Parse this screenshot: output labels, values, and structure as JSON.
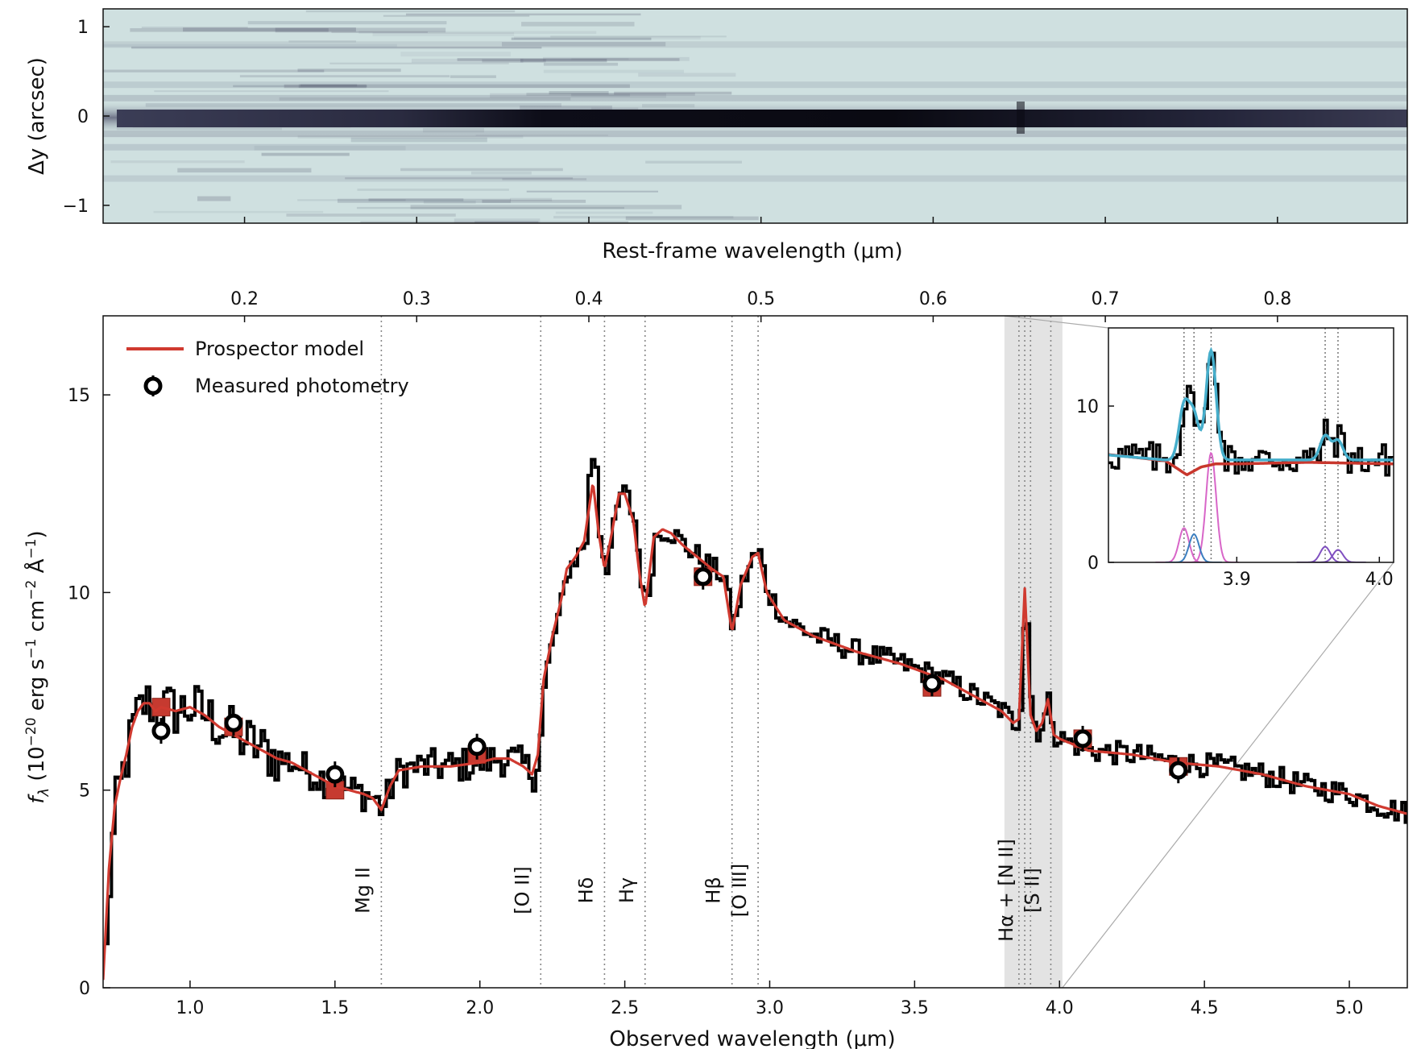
{
  "figure": {
    "spec2d_ylabel": "Δy (arcsec)",
    "rest_xlabel": "Rest-frame wavelength (μm)",
    "main_xlabel": "Observed wavelength (μm)",
    "main_ylabel": "f_λ (10^−20 erg s^−1 cm^−2 Å^−1)",
    "legend": {
      "model": "Prospector model",
      "photometry": "Measured photometry"
    }
  },
  "chart_data": [
    {
      "type": "heatmap",
      "name": "2D spectrum",
      "ylabel": "Δy (arcsec)",
      "ylim": [
        -1.2,
        1.2
      ],
      "yticks": [
        1,
        0,
        -1
      ],
      "xlim_observed": [
        0.7,
        5.2
      ],
      "trace_row": 0,
      "colors": {
        "background": "#cfe0e0",
        "trace": "#0a0a14",
        "mid": "#5a5c75"
      }
    },
    {
      "type": "line",
      "name": "main spectrum",
      "xlabel": "Observed wavelength (μm)",
      "ylabel": "f_λ (10^−20 erg s^−1 cm^−2 Å^−1)",
      "xlim": [
        0.7,
        5.2
      ],
      "ylim": [
        0,
        17
      ],
      "xticks": [
        "1.0",
        "1.5",
        "2.0",
        "2.5",
        "3.0",
        "3.5",
        "4.0",
        "4.5",
        "5.0"
      ],
      "yticks": [
        "0",
        "5",
        "10",
        "15"
      ],
      "top_axis": {
        "label": "Rest-frame wavelength (μm)",
        "ticks": [
          "0.2",
          "0.3",
          "0.4",
          "0.5",
          "0.6",
          "0.7",
          "0.8"
        ],
        "tick_values_rest": [
          0.2,
          0.3,
          0.4,
          0.5,
          0.6,
          0.7,
          0.8
        ],
        "conversion_factor": 5.94
      },
      "colors": {
        "observed": "#000000",
        "model": "#d03a30",
        "photometry_face": "#ffffff",
        "band": "#e3e3e3",
        "lines": "#777777"
      },
      "series": [
        {
          "name": "Prospector model",
          "x": [
            0.7,
            0.72,
            0.74,
            0.76,
            0.78,
            0.8,
            0.82,
            0.84,
            0.86,
            0.88,
            0.9,
            0.95,
            1.0,
            1.05,
            1.1,
            1.15,
            1.2,
            1.25,
            1.3,
            1.35,
            1.4,
            1.45,
            1.5,
            1.55,
            1.6,
            1.63,
            1.66,
            1.69,
            1.72,
            1.8,
            1.9,
            2.0,
            2.05,
            2.1,
            2.15,
            2.18,
            2.2,
            2.22,
            2.25,
            2.28,
            2.3,
            2.33,
            2.36,
            2.39,
            2.41,
            2.43,
            2.45,
            2.48,
            2.5,
            2.53,
            2.55,
            2.57,
            2.6,
            2.63,
            2.66,
            2.7,
            2.75,
            2.8,
            2.84,
            2.87,
            2.9,
            2.94,
            2.96,
            2.99,
            3.05,
            3.15,
            3.3,
            3.45,
            3.6,
            3.7,
            3.8,
            3.84,
            3.86,
            3.88,
            3.9,
            3.92,
            3.94,
            3.96,
            3.98,
            4.0,
            4.1,
            4.25,
            4.4,
            4.55,
            4.7,
            4.85,
            5.0,
            5.1,
            5.2
          ],
          "y": [
            0.2,
            3.0,
            4.6,
            5.3,
            5.9,
            6.6,
            7.0,
            7.2,
            7.2,
            7.0,
            7.1,
            7.0,
            7.1,
            6.9,
            6.6,
            6.4,
            6.2,
            6.0,
            5.8,
            5.7,
            5.5,
            5.3,
            5.1,
            5.0,
            4.9,
            4.8,
            4.5,
            5.1,
            5.5,
            5.6,
            5.6,
            5.7,
            5.8,
            5.8,
            5.6,
            5.4,
            5.9,
            7.8,
            8.9,
            9.8,
            10.6,
            10.9,
            11.3,
            12.8,
            11.5,
            10.6,
            11.3,
            12.5,
            12.5,
            11.8,
            10.5,
            9.6,
            11.4,
            11.6,
            11.5,
            11.2,
            10.9,
            10.6,
            10.4,
            9.0,
            10.2,
            10.9,
            11.0,
            10.0,
            9.3,
            8.9,
            8.5,
            8.2,
            7.8,
            7.4,
            7.0,
            6.7,
            6.8,
            10.1,
            6.9,
            6.5,
            6.7,
            7.3,
            6.4,
            6.3,
            6.0,
            5.9,
            5.7,
            5.6,
            5.4,
            5.1,
            4.9,
            4.6,
            4.4
          ]
        },
        {
          "name": "Measured photometry",
          "x": [
            0.9,
            1.15,
            1.5,
            1.99,
            2.77,
            3.56,
            4.08,
            4.41
          ],
          "y": [
            6.5,
            6.7,
            5.4,
            6.1,
            10.4,
            7.7,
            6.3,
            5.5
          ]
        }
      ],
      "model_photometry": {
        "x": [
          0.9,
          1.15,
          1.5,
          1.99,
          2.77,
          3.56,
          4.08,
          4.41
        ],
        "y": [
          7.1,
          6.6,
          5.0,
          5.9,
          10.4,
          7.6,
          6.3,
          5.6
        ]
      },
      "emission_lines": [
        {
          "label": "Mg II",
          "x": 1.66
        },
        {
          "label": "[O II]",
          "x": 2.21
        },
        {
          "label": "Hδ",
          "x": 2.43
        },
        {
          "label": "Hγ",
          "x": 2.57
        },
        {
          "label": "Hβ",
          "x": 2.87
        },
        {
          "label": "[O III]",
          "x": 2.96
        },
        {
          "label": "Hα + [N II]",
          "x": 3.88
        },
        {
          "label": "[S II]",
          "x": 3.97
        }
      ],
      "extra_dotted_x": [
        3.86,
        3.9
      ],
      "shaded_band": [
        3.81,
        4.01
      ]
    },
    {
      "type": "line",
      "name": "inset",
      "xlim": [
        3.81,
        4.01
      ],
      "ylim": [
        0,
        15
      ],
      "xticks": [
        "3.9",
        "4.0"
      ],
      "yticks": [
        "0",
        "10"
      ],
      "colors": {
        "total_fit": "#46aecb",
        "continuum": "#c8372d",
        "balmer": "#d866c8",
        "nii": "#3c7fc0",
        "sii": "#8050c0"
      },
      "dotted_x": [
        3.863,
        3.87,
        3.882,
        3.962,
        3.971
      ],
      "series": [
        {
          "name": "total fit",
          "x": [
            3.81,
            3.84,
            3.855,
            3.863,
            3.87,
            3.875,
            3.882,
            3.895,
            3.92,
            3.95,
            3.962,
            3.966,
            3.975,
            3.99,
            4.01
          ],
          "y": [
            6.9,
            6.8,
            7.6,
            10.6,
            9.0,
            9.6,
            13.2,
            6.6,
            6.5,
            6.6,
            8.3,
            8.8,
            7.0,
            6.5,
            6.3
          ]
        },
        {
          "name": "continuum",
          "x": [
            3.81,
            3.85,
            3.865,
            3.875,
            3.885,
            3.9,
            3.95,
            4.01
          ],
          "y": [
            6.9,
            6.5,
            5.6,
            6.1,
            6.3,
            6.3,
            6.4,
            6.3
          ]
        },
        {
          "name": "Hα",
          "center": 3.882,
          "amp": 7.0,
          "sigma": 0.0035
        },
        {
          "name": "[N II] 6548",
          "center": 3.863,
          "amp": 2.2,
          "sigma": 0.0035
        },
        {
          "name": "[N II] 6584",
          "center": 3.87,
          "amp": 1.8,
          "sigma": 0.0035
        },
        {
          "name": "[S II] 6716",
          "center": 3.962,
          "amp": 1.0,
          "sigma": 0.0035
        },
        {
          "name": "[S II] 6731",
          "center": 3.971,
          "amp": 0.8,
          "sigma": 0.0035
        }
      ]
    }
  ]
}
